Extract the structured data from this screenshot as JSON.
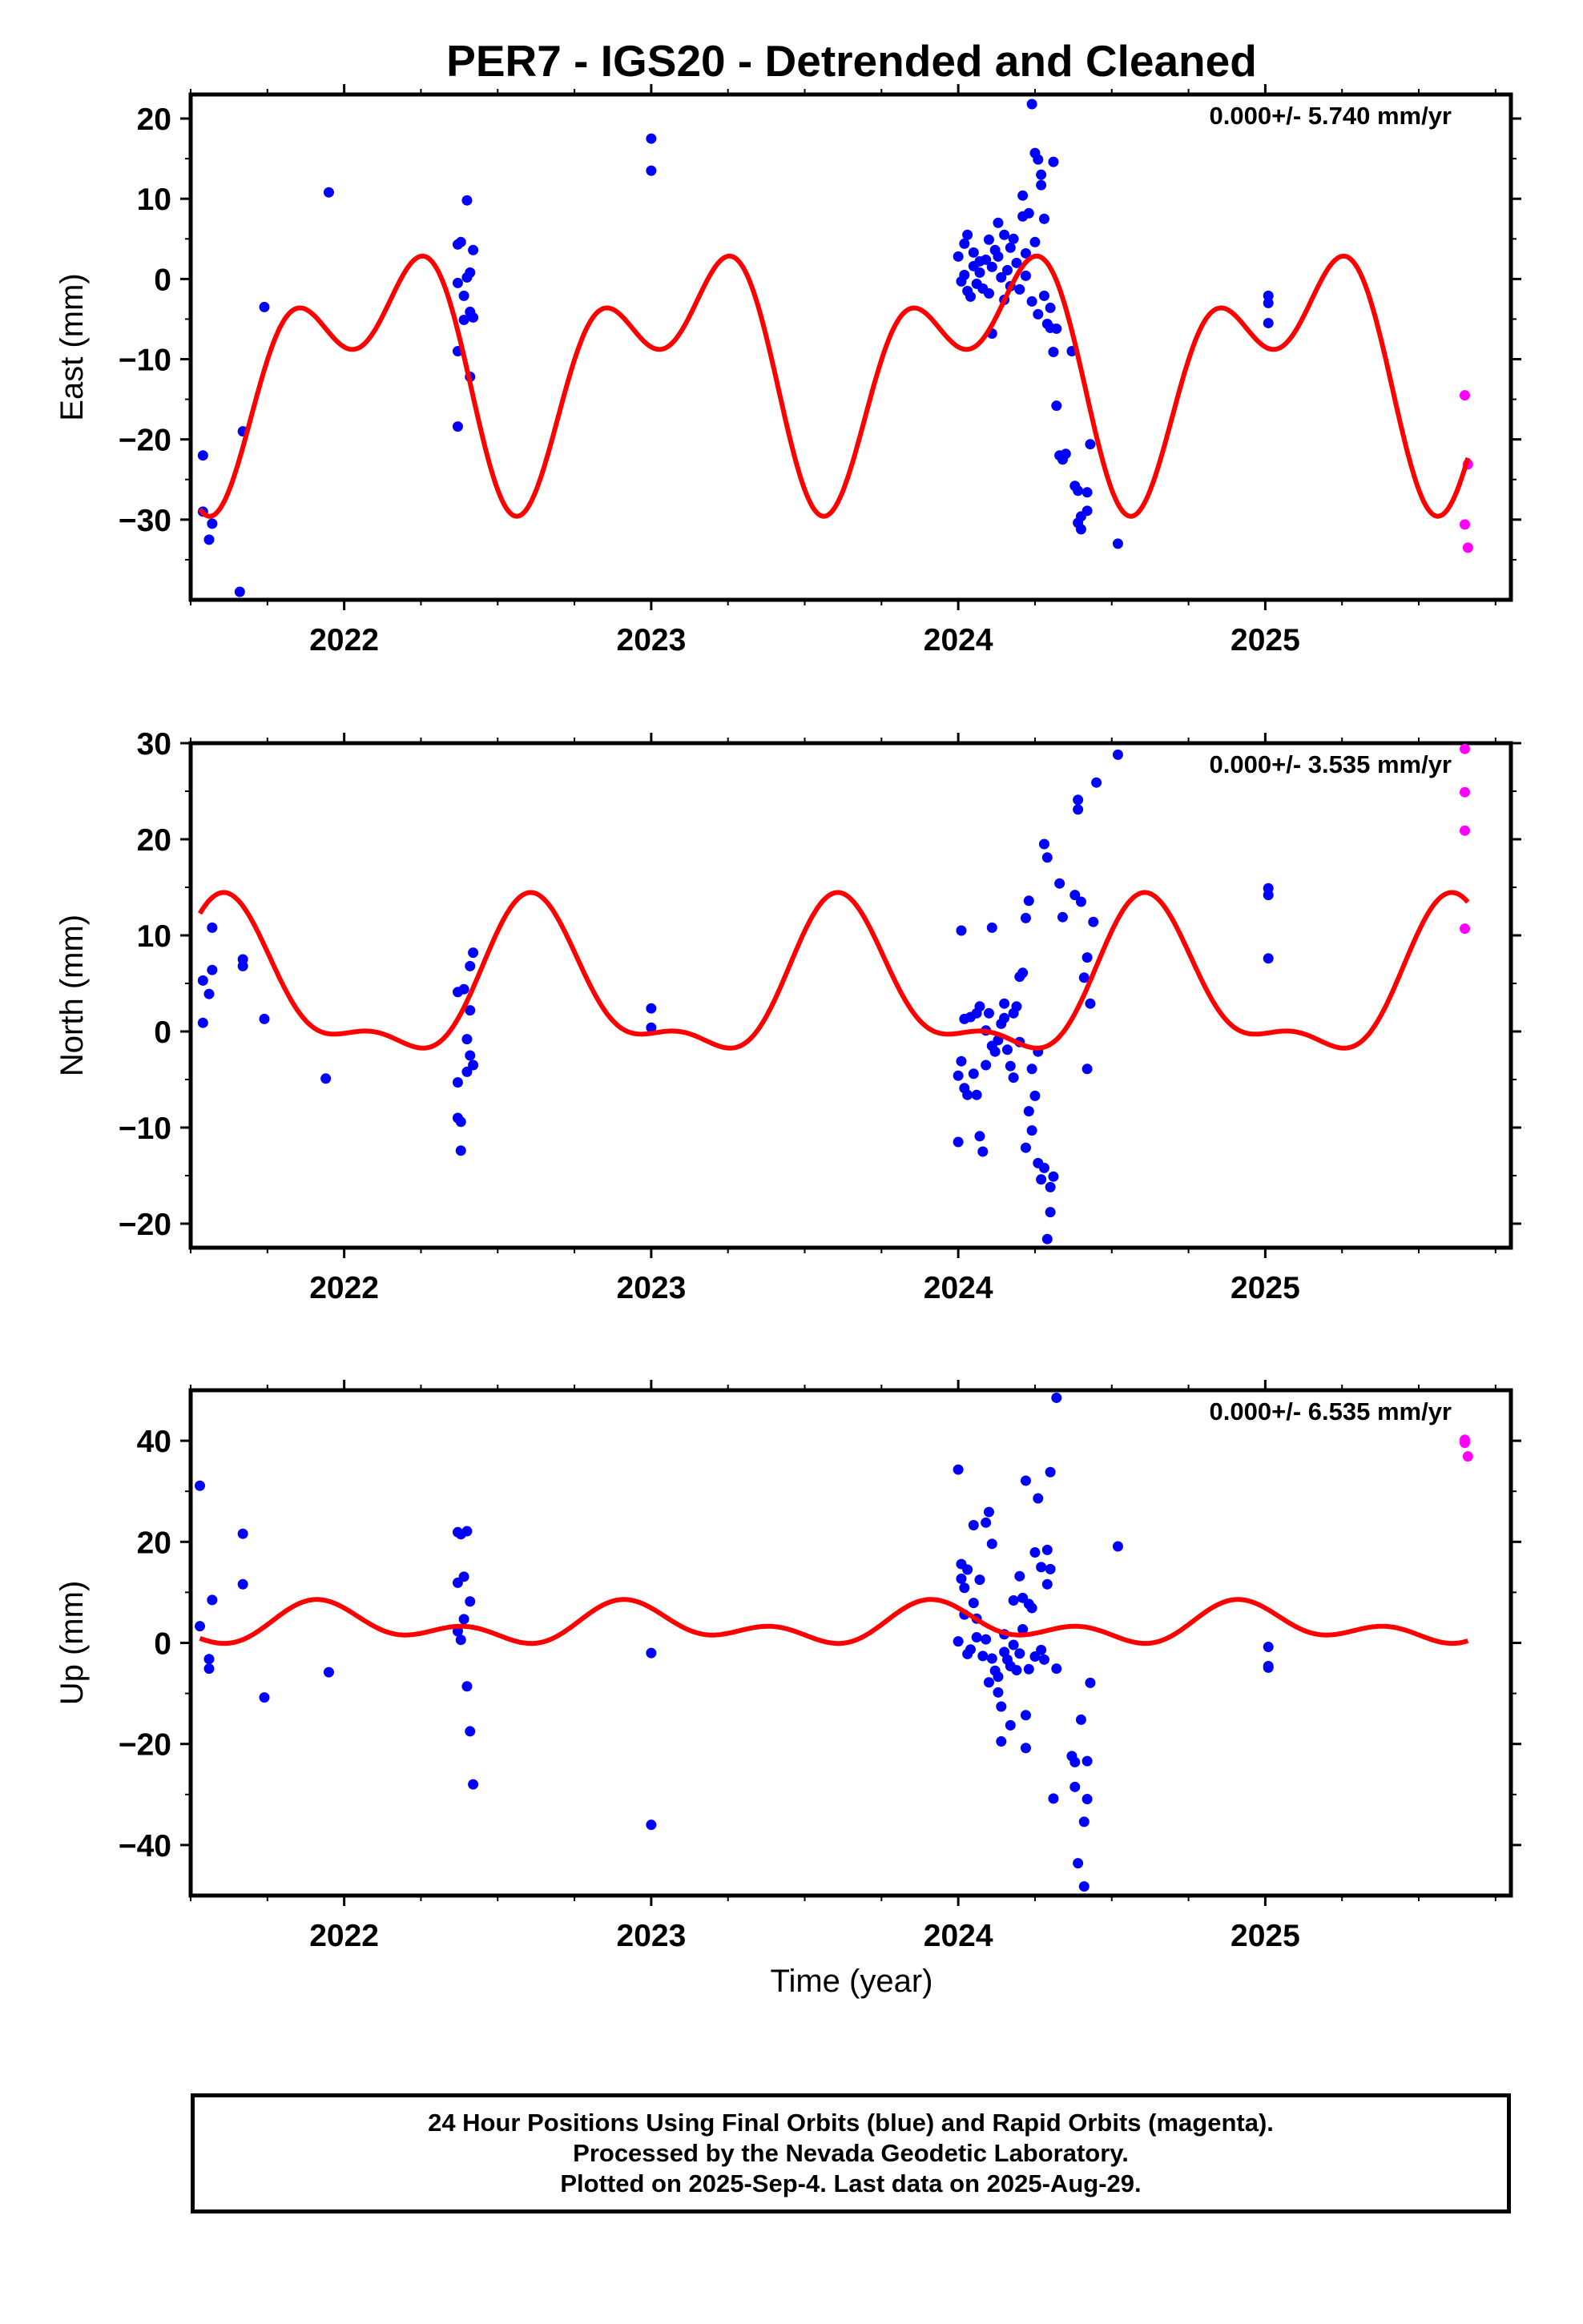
{
  "title": "PER7 - IGS20 - Detrended and Cleaned",
  "colors": {
    "final": "#0000ff",
    "rapid": "#ff00ff",
    "model": "#ff0000",
    "axis": "#000000"
  },
  "chart_data": [
    {
      "type": "scatter",
      "ylabel": "East (mm)",
      "rate": "0.000+/- 5.740 mm/yr",
      "xlim": [
        2021.5,
        2025.8
      ],
      "ylim": [
        -40,
        23
      ],
      "x_ticks": [
        2022,
        2023,
        2024,
        2025
      ],
      "y_ticks": [
        -30,
        -20,
        -10,
        0,
        10,
        20
      ],
      "y_minor": [
        -35,
        -25,
        -15,
        -5,
        5,
        15
      ],
      "model": {
        "offset": -10.5,
        "a1": -11.0,
        "p1": 0.05,
        "a2": 8.5,
        "p2": 0.25,
        "shift": 0.55
      },
      "final_points": [
        [
          2021.54,
          -22
        ],
        [
          2021.54,
          -29
        ],
        [
          2021.57,
          -30.5
        ],
        [
          2021.56,
          -32.5
        ],
        [
          2021.67,
          -19
        ],
        [
          2021.66,
          -39
        ],
        [
          2021.74,
          -3.5
        ],
        [
          2021.95,
          10.8
        ],
        [
          2022.37,
          4.3
        ],
        [
          2022.38,
          4.6
        ],
        [
          2022.37,
          -0.5
        ],
        [
          2022.39,
          -2.1
        ],
        [
          2022.4,
          9.8
        ],
        [
          2022.4,
          0.2
        ],
        [
          2022.41,
          -4.1
        ],
        [
          2022.41,
          0.8
        ],
        [
          2022.42,
          3.6
        ],
        [
          2022.42,
          -4.8
        ],
        [
          2022.39,
          -5.1
        ],
        [
          2022.37,
          -9
        ],
        [
          2022.41,
          -12.2
        ],
        [
          2022.37,
          -18.4
        ],
        [
          2023.0,
          17.5
        ],
        [
          2023.0,
          13.5
        ],
        [
          2024.0,
          2.8
        ],
        [
          2024.01,
          -0.3
        ],
        [
          2024.02,
          0.5
        ],
        [
          2024.02,
          4.4
        ],
        [
          2024.03,
          -1.5
        ],
        [
          2024.03,
          5.5
        ],
        [
          2024.04,
          -2.2
        ],
        [
          2024.05,
          1.6
        ],
        [
          2024.05,
          3.3
        ],
        [
          2024.06,
          -0.6
        ],
        [
          2024.07,
          2.2
        ],
        [
          2024.07,
          0.8
        ],
        [
          2024.08,
          -1.2
        ],
        [
          2024.09,
          2.4
        ],
        [
          2024.1,
          4.9
        ],
        [
          2024.1,
          -1.8
        ],
        [
          2024.11,
          -6.8
        ],
        [
          2024.11,
          1.5
        ],
        [
          2024.12,
          3.6
        ],
        [
          2024.13,
          2.8
        ],
        [
          2024.13,
          7
        ],
        [
          2024.14,
          0.2
        ],
        [
          2024.15,
          5.5
        ],
        [
          2024.15,
          -2.6
        ],
        [
          2024.16,
          1.1
        ],
        [
          2024.17,
          3.9
        ],
        [
          2024.17,
          -0.9
        ],
        [
          2024.18,
          5
        ],
        [
          2024.19,
          2
        ],
        [
          2024.2,
          -1.3
        ],
        [
          2024.21,
          7.8
        ],
        [
          2024.21,
          10.4
        ],
        [
          2024.22,
          3.2
        ],
        [
          2024.22,
          0.4
        ],
        [
          2024.23,
          8.2
        ],
        [
          2024.24,
          21.8
        ],
        [
          2024.24,
          -2.8
        ],
        [
          2024.25,
          15.7
        ],
        [
          2024.25,
          4.6
        ],
        [
          2024.26,
          14.9
        ],
        [
          2024.26,
          -4.4
        ],
        [
          2024.27,
          11.7
        ],
        [
          2024.27,
          13
        ],
        [
          2024.28,
          -2.1
        ],
        [
          2024.28,
          7.5
        ],
        [
          2024.29,
          -5.6
        ],
        [
          2024.3,
          -3.6
        ],
        [
          2024.3,
          -6.1
        ],
        [
          2024.31,
          -9.1
        ],
        [
          2024.31,
          14.6
        ],
        [
          2024.32,
          -6.2
        ],
        [
          2024.32,
          -15.8
        ],
        [
          2024.33,
          -22
        ],
        [
          2024.34,
          -22.5
        ],
        [
          2024.35,
          -21.8
        ],
        [
          2024.37,
          -9
        ],
        [
          2024.38,
          -25.8
        ],
        [
          2024.39,
          -26.4
        ],
        [
          2024.39,
          -30.4
        ],
        [
          2024.4,
          -29.6
        ],
        [
          2024.4,
          -31.2
        ],
        [
          2024.42,
          -26.6
        ],
        [
          2024.42,
          -28.9
        ],
        [
          2024.43,
          -20.6
        ],
        [
          2024.52,
          -33
        ],
        [
          2025.01,
          -2.1
        ],
        [
          2025.01,
          -3
        ],
        [
          2025.01,
          -5.5
        ]
      ],
      "rapid_points": [
        [
          2025.65,
          -14.5
        ],
        [
          2025.66,
          -23.1
        ],
        [
          2025.65,
          -30.6
        ],
        [
          2025.66,
          -33.5
        ]
      ]
    },
    {
      "type": "scatter",
      "ylabel": "North (mm)",
      "rate": "0.000+/- 3.535 mm/yr",
      "xlim": [
        2021.5,
        2025.8
      ],
      "ylim": [
        -22.5,
        30
      ],
      "x_ticks": [
        2022,
        2023,
        2024,
        2025
      ],
      "y_ticks": [
        -20,
        -10,
        0,
        10,
        20,
        30
      ],
      "y_minor": [
        -15,
        -5,
        5,
        15,
        25
      ],
      "model": {
        "offset": 4.2,
        "a1": 7.3,
        "p1": 0.62,
        "a2": 3.0,
        "p2": 0.6,
        "shift": 0
      },
      "final_points": [
        [
          2021.54,
          5.3
        ],
        [
          2021.54,
          0.9
        ],
        [
          2021.57,
          10.8
        ],
        [
          2021.57,
          6.4
        ],
        [
          2021.56,
          3.9
        ],
        [
          2021.67,
          7.5
        ],
        [
          2021.67,
          6.8
        ],
        [
          2021.74,
          1.3
        ],
        [
          2021.94,
          -4.9
        ],
        [
          2022.37,
          4.1
        ],
        [
          2022.37,
          -5.3
        ],
        [
          2022.38,
          -9.4
        ],
        [
          2022.37,
          -9
        ],
        [
          2022.38,
          -12.4
        ],
        [
          2022.39,
          4.4
        ],
        [
          2022.4,
          -4.2
        ],
        [
          2022.4,
          -0.8
        ],
        [
          2022.41,
          -2.5
        ],
        [
          2022.41,
          6.8
        ],
        [
          2022.41,
          2.2
        ],
        [
          2022.42,
          8.2
        ],
        [
          2022.42,
          -3.5
        ],
        [
          2023.0,
          2.4
        ],
        [
          2023.0,
          0.4
        ],
        [
          2024.0,
          -4.6
        ],
        [
          2024.0,
          -11.5
        ],
        [
          2024.01,
          10.5
        ],
        [
          2024.01,
          -3.1
        ],
        [
          2024.02,
          -5.9
        ],
        [
          2024.02,
          1.3
        ],
        [
          2024.03,
          -6.6
        ],
        [
          2024.04,
          1.5
        ],
        [
          2024.05,
          -4.4
        ],
        [
          2024.06,
          -6.6
        ],
        [
          2024.06,
          1.9
        ],
        [
          2024.07,
          -10.9
        ],
        [
          2024.07,
          2.6
        ],
        [
          2024.08,
          -12.5
        ],
        [
          2024.09,
          0.1
        ],
        [
          2024.09,
          -3.5
        ],
        [
          2024.1,
          1.9
        ],
        [
          2024.11,
          10.8
        ],
        [
          2024.11,
          -1.5
        ],
        [
          2024.12,
          -2.1
        ],
        [
          2024.13,
          -0.9
        ],
        [
          2024.14,
          0.8
        ],
        [
          2024.15,
          1.4
        ],
        [
          2024.15,
          2.9
        ],
        [
          2024.16,
          -1.9
        ],
        [
          2024.17,
          -3.6
        ],
        [
          2024.18,
          -4.8
        ],
        [
          2024.18,
          1.9
        ],
        [
          2024.19,
          2.6
        ],
        [
          2024.2,
          5.7
        ],
        [
          2024.2,
          -1.1
        ],
        [
          2024.21,
          6.1
        ],
        [
          2024.22,
          -12.1
        ],
        [
          2024.22,
          11.8
        ],
        [
          2024.23,
          13.6
        ],
        [
          2024.23,
          -8.3
        ],
        [
          2024.24,
          -10.3
        ],
        [
          2024.24,
          -3.9
        ],
        [
          2024.25,
          -6.7
        ],
        [
          2024.26,
          -13.7
        ],
        [
          2024.26,
          -2.1
        ],
        [
          2024.27,
          -15.4
        ],
        [
          2024.28,
          19.5
        ],
        [
          2024.28,
          -14.2
        ],
        [
          2024.29,
          18.1
        ],
        [
          2024.29,
          -21.6
        ],
        [
          2024.3,
          -18.8
        ],
        [
          2024.3,
          -16.2
        ],
        [
          2024.31,
          -15.1
        ],
        [
          2024.33,
          15.4
        ],
        [
          2024.34,
          11.9
        ],
        [
          2024.38,
          14.2
        ],
        [
          2024.39,
          23.1
        ],
        [
          2024.39,
          24.1
        ],
        [
          2024.4,
          13.5
        ],
        [
          2024.41,
          5.6
        ],
        [
          2024.42,
          7.7
        ],
        [
          2024.42,
          -3.9
        ],
        [
          2024.43,
          2.9
        ],
        [
          2024.44,
          11.4
        ],
        [
          2024.45,
          25.9
        ],
        [
          2024.52,
          28.8
        ],
        [
          2025.01,
          14.9
        ],
        [
          2025.01,
          14.2
        ],
        [
          2025.01,
          7.6
        ]
      ],
      "rapid_points": [
        [
          2025.65,
          29.4
        ],
        [
          2025.65,
          24.9
        ],
        [
          2025.65,
          20.9
        ],
        [
          2025.65,
          10.7
        ]
      ]
    },
    {
      "type": "scatter",
      "ylabel": "Up (mm)",
      "rate": "0.000+/- 6.535 mm/yr",
      "xlim": [
        2021.5,
        2025.8
      ],
      "ylim": [
        -50,
        50
      ],
      "x_ticks": [
        2022,
        2023,
        2024,
        2025
      ],
      "y_ticks": [
        -40,
        -20,
        0,
        20,
        40
      ],
      "y_minor": [
        -30,
        -10,
        10,
        30
      ],
      "model": {
        "offset": 3.5,
        "a1": 2.8,
        "p1": 0.95,
        "a2": 2.4,
        "p2": 0.9,
        "shift": 0
      },
      "final_points": [
        [
          2021.53,
          31.1
        ],
        [
          2021.53,
          3.3
        ],
        [
          2021.56,
          -3.2
        ],
        [
          2021.57,
          8.5
        ],
        [
          2021.56,
          -5.1
        ],
        [
          2021.67,
          21.6
        ],
        [
          2021.67,
          11.6
        ],
        [
          2021.74,
          -10.8
        ],
        [
          2021.95,
          -5.8
        ],
        [
          2022.37,
          21.9
        ],
        [
          2022.37,
          11.9
        ],
        [
          2022.38,
          21.5
        ],
        [
          2022.38,
          0.6
        ],
        [
          2022.39,
          13.1
        ],
        [
          2022.39,
          4.7
        ],
        [
          2022.4,
          -8.6
        ],
        [
          2022.4,
          22.1
        ],
        [
          2022.41,
          -17.5
        ],
        [
          2022.41,
          8.2
        ],
        [
          2022.42,
          -28
        ],
        [
          2022.37,
          2.3
        ],
        [
          2023.0,
          -2
        ],
        [
          2023.0,
          -36
        ],
        [
          2024.0,
          34.3
        ],
        [
          2024.0,
          0.3
        ],
        [
          2024.01,
          12.7
        ],
        [
          2024.01,
          15.6
        ],
        [
          2024.02,
          10.9
        ],
        [
          2024.02,
          5.6
        ],
        [
          2024.03,
          -2.2
        ],
        [
          2024.03,
          14.5
        ],
        [
          2024.04,
          -1.3
        ],
        [
          2024.05,
          23.3
        ],
        [
          2024.05,
          7.9
        ],
        [
          2024.06,
          4.8
        ],
        [
          2024.06,
          1.1
        ],
        [
          2024.07,
          12.5
        ],
        [
          2024.08,
          -2.6
        ],
        [
          2024.09,
          23.8
        ],
        [
          2024.09,
          0.7
        ],
        [
          2024.1,
          25.9
        ],
        [
          2024.1,
          -7.8
        ],
        [
          2024.11,
          19.6
        ],
        [
          2024.11,
          -3.1
        ],
        [
          2024.12,
          -5.5
        ],
        [
          2024.13,
          -6.7
        ],
        [
          2024.13,
          -9.8
        ],
        [
          2024.14,
          -12.6
        ],
        [
          2024.14,
          -19.5
        ],
        [
          2024.15,
          -1.8
        ],
        [
          2024.15,
          1.7
        ],
        [
          2024.16,
          -3.3
        ],
        [
          2024.17,
          -4.6
        ],
        [
          2024.17,
          -16.3
        ],
        [
          2024.18,
          -0.4
        ],
        [
          2024.18,
          8.4
        ],
        [
          2024.19,
          -5.4
        ],
        [
          2024.2,
          -2.1
        ],
        [
          2024.2,
          13.2
        ],
        [
          2024.21,
          8.9
        ],
        [
          2024.21,
          2.7
        ],
        [
          2024.22,
          32.1
        ],
        [
          2024.22,
          -14.3
        ],
        [
          2024.22,
          -20.8
        ],
        [
          2024.23,
          7.7
        ],
        [
          2024.23,
          -5.2
        ],
        [
          2024.24,
          6.9
        ],
        [
          2024.25,
          -2.7
        ],
        [
          2024.25,
          17.9
        ],
        [
          2024.26,
          28.6
        ],
        [
          2024.27,
          15
        ],
        [
          2024.27,
          -1.4
        ],
        [
          2024.28,
          -3.3
        ],
        [
          2024.29,
          11.6
        ],
        [
          2024.29,
          18.4
        ],
        [
          2024.3,
          33.8
        ],
        [
          2024.3,
          14.6
        ],
        [
          2024.31,
          -30.8
        ],
        [
          2024.32,
          -5.1
        ],
        [
          2024.32,
          48.5
        ],
        [
          2024.37,
          -22.4
        ],
        [
          2024.38,
          -23.6
        ],
        [
          2024.38,
          -28.5
        ],
        [
          2024.39,
          -43.6
        ],
        [
          2024.4,
          -15.2
        ],
        [
          2024.41,
          -35.4
        ],
        [
          2024.41,
          -48.2
        ],
        [
          2024.42,
          -23.4
        ],
        [
          2024.42,
          -30.9
        ],
        [
          2024.43,
          -7.9
        ],
        [
          2024.52,
          19.1
        ],
        [
          2025.01,
          -0.8
        ],
        [
          2025.01,
          -4.6
        ],
        [
          2025.01,
          -4.9
        ]
      ],
      "rapid_points": [
        [
          2025.65,
          40.2
        ],
        [
          2025.65,
          39.6
        ],
        [
          2025.66,
          36.9
        ]
      ]
    }
  ],
  "xlabel": "Time (year)",
  "footer": {
    "line1": "24 Hour Positions Using Final Orbits (blue) and Rapid Orbits (magenta).",
    "line2": "Processed by the Nevada Geodetic Laboratory.",
    "line3": "Plotted on 2025-Sep-4. Last data on 2025-Aug-29."
  }
}
